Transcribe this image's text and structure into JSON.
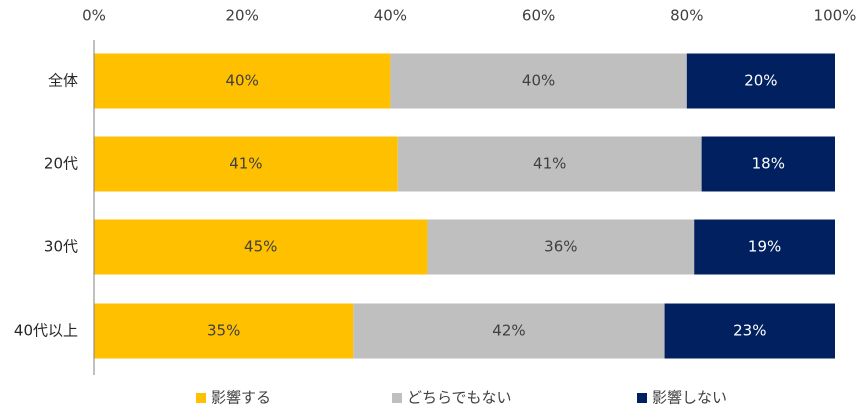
{
  "chart_data": {
    "type": "bar",
    "orientation": "horizontal",
    "stacked": true,
    "title": "",
    "xlabel": "",
    "ylabel": "",
    "xlim": [
      0,
      100
    ],
    "x_ticks": [
      "0%",
      "20%",
      "40%",
      "60%",
      "80%",
      "100%"
    ],
    "x_tick_values": [
      0,
      20,
      40,
      60,
      80,
      100
    ],
    "x_axis_position": "top",
    "grid": false,
    "legend_position": "bottom",
    "categories": [
      "全体",
      "20代",
      "30代",
      "40代以上"
    ],
    "series": [
      {
        "name": "影響する",
        "color": "#FFC000",
        "label_color": "#404040",
        "values": [
          40,
          41,
          45,
          35
        ],
        "labels": [
          "40%",
          "41%",
          "45%",
          "35%"
        ]
      },
      {
        "name": "どちらでもない",
        "color": "#BFBFBF",
        "label_color": "#404040",
        "values": [
          40,
          41,
          36,
          42
        ],
        "labels": [
          "40%",
          "41%",
          "36%",
          "42%"
        ]
      },
      {
        "name": "影響しない",
        "color": "#002060",
        "label_color": "#FFFFFF",
        "values": [
          20,
          18,
          19,
          23
        ],
        "labels": [
          "20%",
          "18%",
          "19%",
          "23%"
        ]
      }
    ]
  }
}
